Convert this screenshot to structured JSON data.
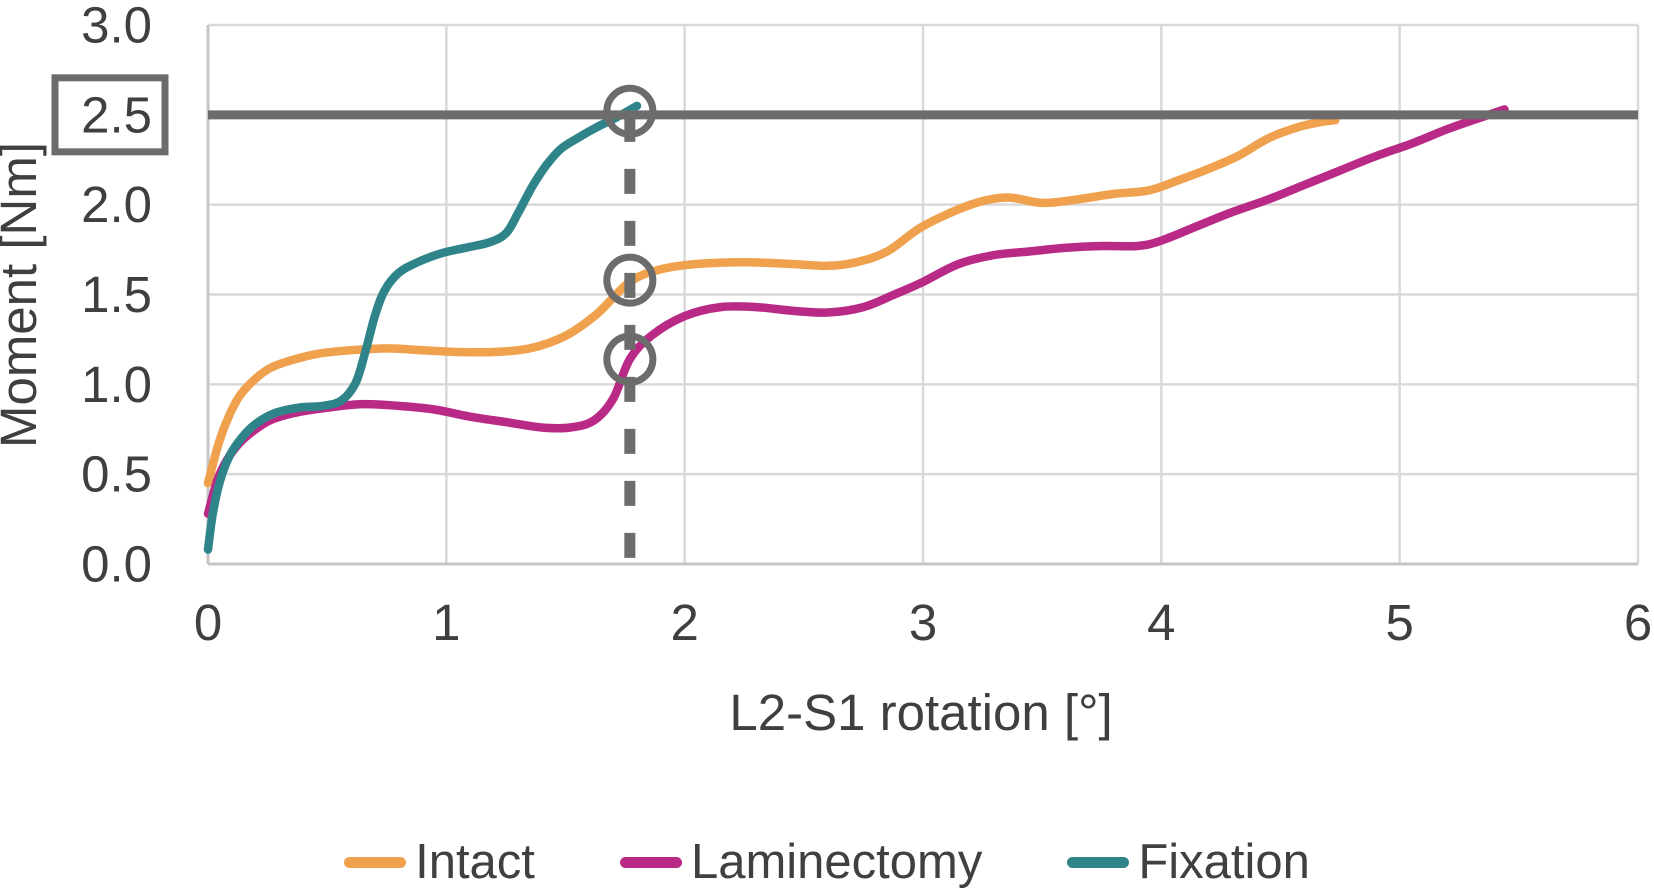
{
  "chart_data": {
    "type": "line",
    "title": "",
    "xlabel": "L2-S1 rotation [°]",
    "ylabel": "Moment [Nm]",
    "xlim": [
      0,
      6
    ],
    "ylim": [
      0,
      3
    ],
    "grid": true,
    "legend_position": "bottom",
    "x_ticks": [
      {
        "value": 0,
        "label": "0"
      },
      {
        "value": 1,
        "label": "1"
      },
      {
        "value": 2,
        "label": "2"
      },
      {
        "value": 3,
        "label": "3"
      },
      {
        "value": 4,
        "label": "4"
      },
      {
        "value": 5,
        "label": "5"
      },
      {
        "value": 6,
        "label": "6"
      }
    ],
    "y_ticks": [
      {
        "value": 0,
        "label": "0.0",
        "boxed": false
      },
      {
        "value": 0.5,
        "label": "0.5",
        "boxed": false
      },
      {
        "value": 1,
        "label": "1.0",
        "boxed": false
      },
      {
        "value": 1.5,
        "label": "1.5",
        "boxed": false
      },
      {
        "value": 2,
        "label": "2.0",
        "boxed": false
      },
      {
        "value": 2.5,
        "label": "2.5",
        "boxed": true
      },
      {
        "value": 3,
        "label": "3.0",
        "boxed": false
      }
    ],
    "threshold_line": {
      "y": 2.5,
      "color": "#6C6C6C"
    },
    "marker": {
      "x": 1.77,
      "color": "#6C6C6C",
      "dashed_vertical_line": true,
      "circles": [
        {
          "x": 1.77,
          "y": 2.52
        },
        {
          "x": 1.77,
          "y": 1.58
        },
        {
          "x": 1.77,
          "y": 1.14
        }
      ]
    },
    "series": [
      {
        "name": "Intact",
        "color": "#F0A14D",
        "points": [
          [
            0,
            0.45
          ],
          [
            0.04,
            0.65
          ],
          [
            0.08,
            0.8
          ],
          [
            0.13,
            0.93
          ],
          [
            0.19,
            1.02
          ],
          [
            0.26,
            1.09
          ],
          [
            0.34,
            1.13
          ],
          [
            0.46,
            1.17
          ],
          [
            0.6,
            1.19
          ],
          [
            0.75,
            1.2
          ],
          [
            0.9,
            1.19
          ],
          [
            1.05,
            1.18
          ],
          [
            1.2,
            1.18
          ],
          [
            1.35,
            1.2
          ],
          [
            1.5,
            1.27
          ],
          [
            1.63,
            1.39
          ],
          [
            1.77,
            1.57
          ],
          [
            1.9,
            1.64
          ],
          [
            2.05,
            1.67
          ],
          [
            2.25,
            1.68
          ],
          [
            2.45,
            1.67
          ],
          [
            2.6,
            1.66
          ],
          [
            2.72,
            1.68
          ],
          [
            2.85,
            1.74
          ],
          [
            3.0,
            1.88
          ],
          [
            3.2,
            2.0
          ],
          [
            3.35,
            2.04
          ],
          [
            3.5,
            2.01
          ],
          [
            3.65,
            2.03
          ],
          [
            3.8,
            2.06
          ],
          [
            3.95,
            2.08
          ],
          [
            4.08,
            2.14
          ],
          [
            4.2,
            2.2
          ],
          [
            4.32,
            2.27
          ],
          [
            4.45,
            2.37
          ],
          [
            4.57,
            2.43
          ],
          [
            4.67,
            2.46
          ],
          [
            4.73,
            2.47
          ]
        ]
      },
      {
        "name": "Laminectomy",
        "color": "#B92A87",
        "points": [
          [
            0,
            0.28
          ],
          [
            0.04,
            0.47
          ],
          [
            0.08,
            0.58
          ],
          [
            0.13,
            0.67
          ],
          [
            0.19,
            0.74
          ],
          [
            0.26,
            0.8
          ],
          [
            0.36,
            0.84
          ],
          [
            0.5,
            0.87
          ],
          [
            0.65,
            0.89
          ],
          [
            0.8,
            0.88
          ],
          [
            0.95,
            0.86
          ],
          [
            1.1,
            0.82
          ],
          [
            1.25,
            0.79
          ],
          [
            1.4,
            0.76
          ],
          [
            1.52,
            0.76
          ],
          [
            1.62,
            0.8
          ],
          [
            1.7,
            0.92
          ],
          [
            1.77,
            1.14
          ],
          [
            1.86,
            1.27
          ],
          [
            2.0,
            1.38
          ],
          [
            2.15,
            1.43
          ],
          [
            2.3,
            1.43
          ],
          [
            2.45,
            1.41
          ],
          [
            2.6,
            1.4
          ],
          [
            2.75,
            1.43
          ],
          [
            2.88,
            1.5
          ],
          [
            3.0,
            1.57
          ],
          [
            3.15,
            1.67
          ],
          [
            3.3,
            1.72
          ],
          [
            3.45,
            1.74
          ],
          [
            3.6,
            1.76
          ],
          [
            3.75,
            1.77
          ],
          [
            3.9,
            1.77
          ],
          [
            4.0,
            1.8
          ],
          [
            4.15,
            1.88
          ],
          [
            4.3,
            1.96
          ],
          [
            4.45,
            2.03
          ],
          [
            4.6,
            2.11
          ],
          [
            4.75,
            2.19
          ],
          [
            4.9,
            2.27
          ],
          [
            5.05,
            2.34
          ],
          [
            5.2,
            2.42
          ],
          [
            5.33,
            2.48
          ],
          [
            5.44,
            2.53
          ]
        ]
      },
      {
        "name": "Fixation",
        "color": "#2F8489",
        "points": [
          [
            0,
            0.08
          ],
          [
            0.02,
            0.28
          ],
          [
            0.05,
            0.46
          ],
          [
            0.09,
            0.6
          ],
          [
            0.14,
            0.7
          ],
          [
            0.2,
            0.78
          ],
          [
            0.28,
            0.84
          ],
          [
            0.38,
            0.87
          ],
          [
            0.48,
            0.88
          ],
          [
            0.56,
            0.91
          ],
          [
            0.62,
            1.01
          ],
          [
            0.66,
            1.18
          ],
          [
            0.7,
            1.38
          ],
          [
            0.74,
            1.52
          ],
          [
            0.8,
            1.62
          ],
          [
            0.88,
            1.68
          ],
          [
            0.98,
            1.73
          ],
          [
            1.08,
            1.76
          ],
          [
            1.18,
            1.79
          ],
          [
            1.25,
            1.84
          ],
          [
            1.3,
            1.95
          ],
          [
            1.36,
            2.1
          ],
          [
            1.42,
            2.22
          ],
          [
            1.48,
            2.31
          ],
          [
            1.55,
            2.37
          ],
          [
            1.63,
            2.43
          ],
          [
            1.72,
            2.49
          ],
          [
            1.8,
            2.55
          ]
        ]
      }
    ]
  },
  "colors": {
    "grid": "#D9D9D9",
    "axis": "#C6C6C6",
    "tick_text": "#3F3F3F",
    "axis_title_text": "#3F3F3F",
    "annotation": "#6C6C6C"
  }
}
